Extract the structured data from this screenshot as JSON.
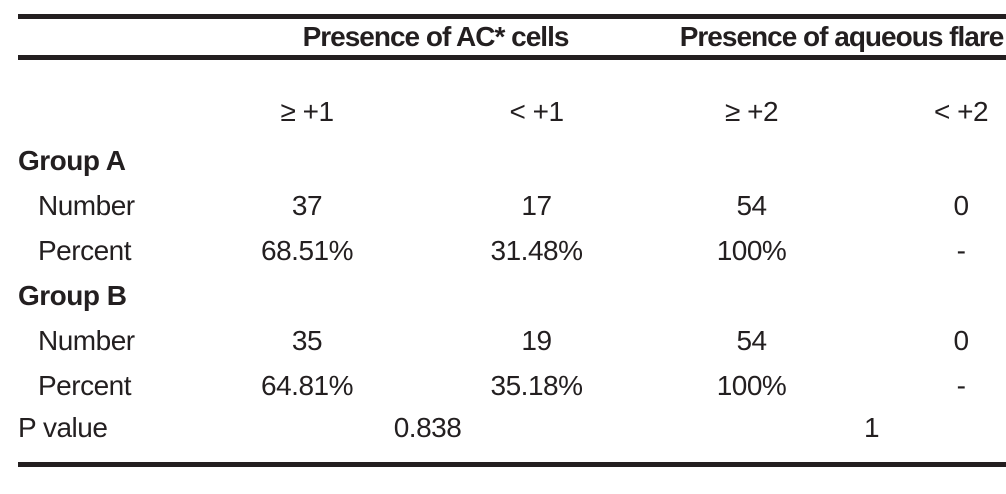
{
  "table": {
    "column_groups": [
      {
        "label": "Presence of AC* cells"
      },
      {
        "label": "Presence of aqueous flare"
      }
    ],
    "sub_headers": [
      "≥ +1",
      "< +1",
      "≥ +2",
      "< +2"
    ],
    "sections": [
      {
        "group_label": "Group A",
        "rows": [
          {
            "label": "Number",
            "values": [
              "37",
              "17",
              "54",
              "0"
            ]
          },
          {
            "label": "Percent",
            "values": [
              "68.51%",
              "31.48%",
              "100%",
              "-"
            ]
          }
        ]
      },
      {
        "group_label": "Group B",
        "rows": [
          {
            "label": "Number",
            "values": [
              "35",
              "19",
              "54",
              "0"
            ]
          },
          {
            "label": "Percent",
            "values": [
              "64.81%",
              "35.18%",
              "100%",
              "-"
            ]
          }
        ]
      }
    ],
    "p_value_row": {
      "label": "P value",
      "ac_cells": "0.838",
      "aqueous_flare": "1"
    }
  },
  "colors": {
    "text": "#231f20",
    "rule": "#231f20",
    "background": "#ffffff"
  }
}
